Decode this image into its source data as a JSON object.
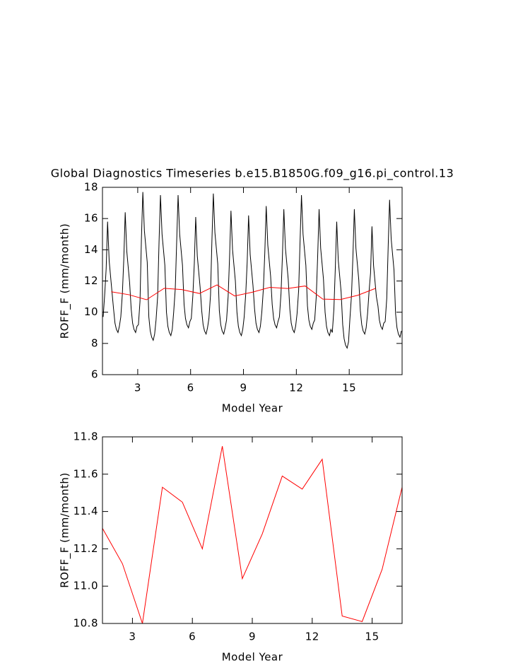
{
  "chart_data": [
    {
      "type": "line",
      "title": "Global Diagnostics Timeseries b.e15.B1850G.f09_g16.pi_control.13",
      "xlabel": "Model Year",
      "ylabel": "ROFF_F (mm/month)",
      "xlim": [
        1,
        18
      ],
      "xticks": [
        3,
        6,
        9,
        12,
        15
      ],
      "ylim": [
        6,
        18
      ],
      "yticks": [
        6,
        8,
        10,
        12,
        14,
        16,
        18
      ],
      "series": [
        {
          "color": "#000000",
          "x": [
            1.04,
            1.13,
            1.21,
            1.29,
            1.38,
            1.46,
            1.54,
            1.63,
            1.71,
            1.79,
            1.88,
            1.96,
            2.04,
            2.13,
            2.21,
            2.29,
            2.38,
            2.46,
            2.54,
            2.63,
            2.71,
            2.79,
            2.88,
            2.96,
            3.04,
            3.13,
            3.21,
            3.29,
            3.38,
            3.46,
            3.54,
            3.63,
            3.71,
            3.79,
            3.88,
            3.96,
            4.04,
            4.13,
            4.21,
            4.29,
            4.38,
            4.46,
            4.54,
            4.63,
            4.71,
            4.79,
            4.88,
            4.96,
            5.04,
            5.13,
            5.21,
            5.29,
            5.38,
            5.46,
            5.54,
            5.63,
            5.71,
            5.79,
            5.88,
            5.96,
            6.04,
            6.13,
            6.21,
            6.29,
            6.38,
            6.46,
            6.54,
            6.63,
            6.71,
            6.79,
            6.88,
            6.96,
            7.04,
            7.13,
            7.21,
            7.29,
            7.38,
            7.46,
            7.54,
            7.63,
            7.71,
            7.79,
            7.88,
            7.96,
            8.04,
            8.13,
            8.21,
            8.29,
            8.38,
            8.46,
            8.54,
            8.63,
            8.71,
            8.79,
            8.88,
            8.96,
            9.04,
            9.13,
            9.21,
            9.29,
            9.38,
            9.46,
            9.54,
            9.63,
            9.71,
            9.79,
            9.88,
            9.96,
            10.04,
            10.13,
            10.21,
            10.29,
            10.38,
            10.46,
            10.54,
            10.63,
            10.71,
            10.79,
            10.88,
            10.96,
            11.04,
            11.13,
            11.21,
            11.29,
            11.38,
            11.46,
            11.54,
            11.63,
            11.71,
            11.79,
            11.88,
            11.96,
            12.04,
            12.13,
            12.21,
            12.29,
            12.38,
            12.46,
            12.54,
            12.63,
            12.71,
            12.79,
            12.88,
            12.96,
            13.04,
            13.13,
            13.21,
            13.29,
            13.38,
            13.46,
            13.54,
            13.63,
            13.71,
            13.79,
            13.88,
            13.96,
            14.04,
            14.13,
            14.21,
            14.29,
            14.38,
            14.46,
            14.54,
            14.63,
            14.71,
            14.79,
            14.88,
            14.96,
            15.04,
            15.13,
            15.21,
            15.29,
            15.38,
            15.46,
            15.54,
            15.63,
            15.71,
            15.79,
            15.88,
            15.96,
            16.04,
            16.13,
            16.21,
            16.29,
            16.38,
            16.46,
            16.54,
            16.63,
            16.71,
            16.79,
            16.88,
            16.96,
            17.04,
            17.13,
            17.21,
            17.29,
            17.38,
            17.46,
            17.54,
            17.63,
            17.71,
            17.79,
            17.88,
            17.96
          ],
          "values": [
            9.7,
            11.2,
            12.8,
            15.8,
            13.3,
            12.3,
            11.3,
            10.2,
            9.3,
            8.9,
            8.7,
            9.1,
            9.7,
            11.2,
            13.4,
            16.4,
            13.9,
            12.9,
            11.9,
            10.2,
            9.3,
            8.9,
            8.7,
            9.1,
            9.2,
            10.7,
            14.7,
            17.7,
            15.2,
            14.2,
            13.2,
            9.7,
            8.8,
            8.4,
            8.2,
            8.6,
            9.5,
            11.0,
            14.5,
            17.5,
            15.0,
            14.0,
            13.0,
            10.0,
            9.1,
            8.7,
            8.5,
            8.9,
            10.0,
            11.5,
            14.5,
            17.5,
            15.0,
            14.0,
            13.0,
            10.5,
            9.6,
            9.2,
            9.0,
            9.4,
            9.6,
            11.1,
            13.1,
            16.1,
            13.6,
            12.6,
            11.6,
            10.1,
            9.2,
            8.8,
            8.6,
            9.0,
            9.6,
            11.1,
            14.6,
            17.6,
            15.1,
            14.1,
            13.1,
            10.1,
            9.2,
            8.8,
            8.6,
            9.0,
            9.5,
            11.0,
            13.5,
            16.5,
            14.0,
            13.0,
            12.0,
            10.0,
            9.1,
            8.7,
            8.5,
            8.9,
            9.7,
            11.2,
            13.2,
            16.2,
            13.7,
            12.7,
            11.7,
            10.2,
            9.3,
            8.9,
            8.7,
            9.1,
            10.0,
            11.5,
            13.8,
            16.8,
            14.3,
            13.3,
            12.3,
            10.5,
            9.6,
            9.2,
            9.0,
            9.4,
            9.7,
            11.2,
            13.6,
            16.6,
            14.1,
            13.1,
            12.1,
            10.2,
            9.3,
            8.9,
            8.7,
            9.1,
            9.9,
            11.4,
            14.5,
            17.5,
            15.0,
            14.0,
            13.0,
            10.4,
            9.5,
            9.1,
            8.9,
            9.3,
            9.5,
            11.0,
            13.6,
            16.6,
            14.1,
            13.1,
            12.1,
            10.0,
            9.1,
            8.7,
            8.5,
            8.9,
            8.7,
            10.2,
            12.8,
            15.8,
            13.3,
            12.3,
            11.3,
            9.2,
            8.3,
            7.9,
            7.7,
            8.1,
            9.6,
            11.1,
            13.6,
            16.6,
            14.1,
            13.1,
            12.1,
            10.1,
            9.2,
            8.8,
            8.6,
            9.0,
            9.9,
            11.4,
            12.5,
            15.5,
            13.0,
            12.0,
            11.0,
            10.4,
            9.5,
            9.1,
            8.9,
            9.3,
            9.4,
            10.9,
            14.2,
            17.2,
            14.7,
            13.7,
            12.7,
            9.9,
            9.0,
            8.6,
            8.4,
            8.8
          ]
        },
        {
          "color": "#ff0000",
          "x": [
            1.5,
            2.5,
            3.5,
            4.5,
            5.5,
            6.5,
            7.5,
            8.5,
            9.5,
            10.5,
            11.5,
            12.5,
            13.5,
            14.5,
            15.5,
            16.5
          ],
          "values": [
            11.31,
            11.12,
            10.8,
            11.53,
            11.45,
            11.2,
            11.75,
            11.04,
            11.28,
            11.59,
            11.52,
            11.68,
            10.84,
            10.81,
            11.09,
            11.53
          ]
        }
      ]
    },
    {
      "type": "line",
      "xlabel": "Model Year",
      "ylabel": "ROFF_F (mm/month)",
      "xlim": [
        1.5,
        16.5
      ],
      "xticks": [
        3,
        6,
        9,
        12,
        15
      ],
      "ylim": [
        10.8,
        11.8
      ],
      "yticks": [
        {
          "value": 10.8,
          "label": "10.8"
        },
        {
          "value": 11,
          "label": "11.0"
        },
        {
          "value": 11.2,
          "label": "11.2"
        },
        {
          "value": 11.4,
          "label": "11.4"
        },
        {
          "value": 11.6,
          "label": "11.6"
        },
        {
          "value": 11.8,
          "label": "11.8"
        }
      ],
      "series": [
        {
          "color": "#ff0000",
          "x": [
            1.5,
            2.5,
            3.5,
            4.5,
            5.5,
            6.5,
            7.5,
            8.5,
            9.5,
            10.5,
            11.5,
            12.5,
            13.5,
            14.5,
            15.5,
            16.5
          ],
          "values": [
            11.31,
            11.12,
            10.8,
            11.53,
            11.45,
            11.2,
            11.75,
            11.04,
            11.28,
            11.59,
            11.52,
            11.68,
            10.84,
            10.81,
            11.09,
            11.53
          ]
        }
      ]
    }
  ]
}
